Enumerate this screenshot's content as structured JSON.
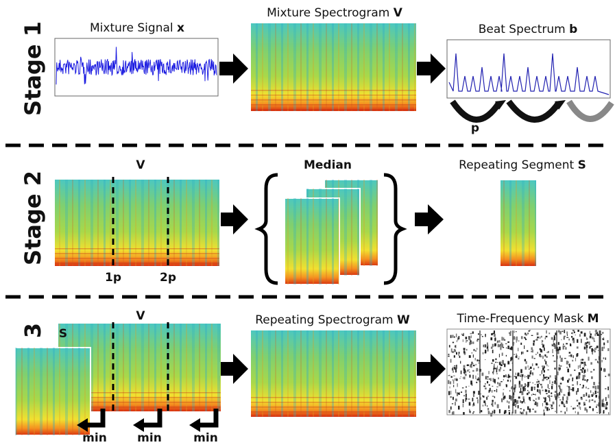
{
  "stages": [
    {
      "label": "Stage 1",
      "panels": [
        {
          "title": "Mixture Signal",
          "symbol": "x"
        },
        {
          "title": "Mixture Spectrogram",
          "symbol": "V"
        },
        {
          "title": "Beat Spectrum",
          "symbol": "b"
        }
      ],
      "period_label": "p"
    },
    {
      "label": "Stage 2",
      "panels": [
        {
          "symbol": "V",
          "markers": [
            "1p",
            "2p"
          ]
        },
        {
          "title": "Median"
        },
        {
          "title": "Repeating Segment",
          "symbol": "S"
        }
      ]
    },
    {
      "label": "Stage 3",
      "panels": [
        {
          "symbol": "V",
          "overlay": "S",
          "min_labels": [
            "min",
            "min",
            "min"
          ]
        },
        {
          "title": "Repeating Spectrogram",
          "symbol": "W"
        },
        {
          "title": "Time-Frequency Mask",
          "symbol": "M"
        }
      ]
    }
  ]
}
